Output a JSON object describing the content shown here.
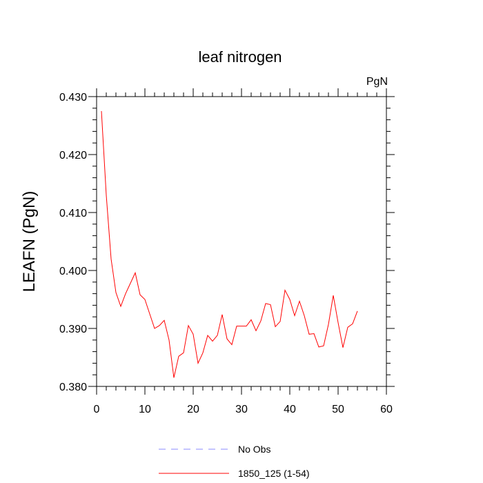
{
  "chart_data": {
    "type": "line",
    "title": "leaf nitrogen",
    "units_label": "PgN",
    "ylabel": "LEAFN  (PgN)",
    "xlabel": "",
    "xlim": [
      0,
      60
    ],
    "ylim": [
      0.38,
      0.43
    ],
    "xticks": [
      0,
      10,
      20,
      30,
      40,
      50,
      60
    ],
    "xtick_labels": [
      "0",
      "10",
      "20",
      "30",
      "40",
      "50",
      "60"
    ],
    "yticks": [
      0.38,
      0.39,
      0.4,
      0.41,
      0.42,
      0.43
    ],
    "ytick_labels": [
      "0.380",
      "0.390",
      "0.400",
      "0.410",
      "0.420",
      "0.430"
    ],
    "grid": false,
    "series": [
      {
        "name": "No Obs",
        "color": "#8a8aff",
        "dash": "dashed",
        "x": [],
        "values": []
      },
      {
        "name": "1850_125 (1-54)",
        "color": "#ff0000",
        "dash": "solid",
        "x": [
          1,
          2,
          3,
          4,
          5,
          6,
          7,
          8,
          9,
          10,
          11,
          12,
          13,
          14,
          15,
          16,
          17,
          18,
          19,
          20,
          21,
          22,
          23,
          24,
          25,
          26,
          27,
          28,
          29,
          30,
          31,
          32,
          33,
          34,
          35,
          36,
          37,
          38,
          39,
          40,
          41,
          42,
          43,
          44,
          45,
          46,
          47,
          48,
          49,
          50,
          51,
          52,
          53,
          54
        ],
        "values": [
          0.4275,
          0.413,
          0.402,
          0.3962,
          0.3938,
          0.396,
          0.3978,
          0.3996,
          0.3958,
          0.395,
          0.3925,
          0.39,
          0.3905,
          0.3914,
          0.388,
          0.3815,
          0.3852,
          0.3858,
          0.3905,
          0.389,
          0.384,
          0.3858,
          0.3888,
          0.3878,
          0.3888,
          0.3924,
          0.3882,
          0.3872,
          0.3904,
          0.3904,
          0.3904,
          0.3915,
          0.3896,
          0.3913,
          0.3943,
          0.3941,
          0.3903,
          0.3912,
          0.3966,
          0.395,
          0.3922,
          0.3947,
          0.3922,
          0.389,
          0.3891,
          0.3868,
          0.387,
          0.3907,
          0.3957,
          0.391,
          0.3867,
          0.3902,
          0.3908,
          0.393
        ]
      }
    ],
    "legend": {
      "placement": "bottom-center",
      "entries": [
        {
          "label": "No Obs",
          "color": "#8a8aff",
          "dash": "dashed"
        },
        {
          "label": "1850_125 (1-54)",
          "color": "#ff0000",
          "dash": "solid"
        }
      ]
    }
  }
}
